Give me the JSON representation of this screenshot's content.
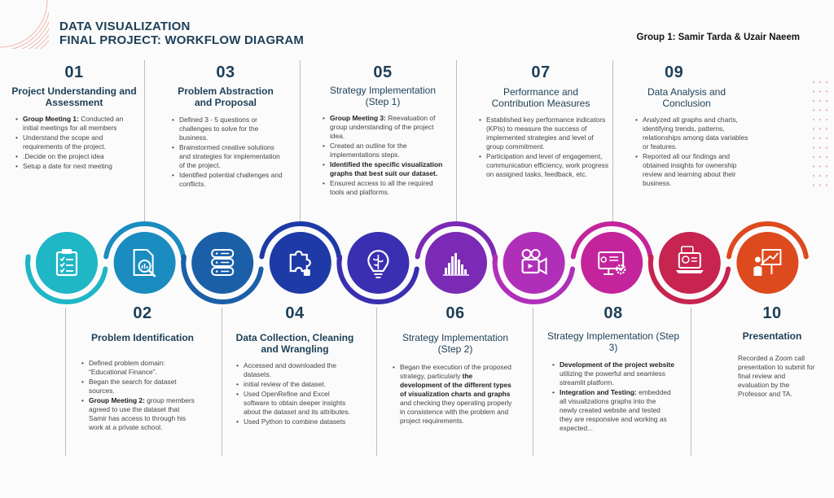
{
  "header": {
    "title_line1": "DATA VISUALIZATION",
    "title_line2": "FINAL PROJECT: WORKFLOW DIAGRAM",
    "group": "Group 1: Samir Tarda & Uzair Naeem"
  },
  "colors": {
    "title": "#1d3f57",
    "icon_colors": [
      "#1fb6c6",
      "#1a8cc0",
      "#1b5fa8",
      "#1e3aa7",
      "#3a2fb0",
      "#7a2ab4",
      "#b02fb8",
      "#c4249b",
      "#c72450",
      "#dd4a1e"
    ]
  },
  "steps": [
    {
      "num": "01",
      "heading": "Project Understanding and Assessment",
      "icon": "clipboard-checklist-icon",
      "items": [
        {
          "bold": "Group Meeting 1:",
          "text": " Conducted an initial meetings for all members"
        },
        {
          "bold": "",
          "text": " Understand the scope and requirements of the project."
        },
        {
          "bold": "",
          "text": ".Decide on the project idea"
        },
        {
          "bold": "",
          "text": "Setup a date for next meeting"
        }
      ]
    },
    {
      "num": "02",
      "heading": "Problem Identification",
      "icon": "document-magnifier-icon",
      "items": [
        {
          "bold": "",
          "text": "Defined problem domain: “Educational Finance”."
        },
        {
          "bold": "",
          "text": "Began the search for dataset sources."
        },
        {
          "bold": "Group Meeting 2:",
          "text": " group members agreed to use the dataset that Samir has access to through his work at a private school."
        }
      ]
    },
    {
      "num": "03",
      "heading": "Problem Abstraction and Proposal",
      "icon": "database-icon",
      "items": [
        {
          "bold": "",
          "text": "Defined 3 - 5 questions or challenges to solve for the business."
        },
        {
          "bold": "",
          "text": "Brainstormed creative solutions and strategies for implementation of the project."
        },
        {
          "bold": "",
          "text": "Identified potential challenges and conflicts."
        }
      ]
    },
    {
      "num": "04",
      "heading": "Data Collection, Cleaning and Wrangling",
      "icon": "puzzle-piece-icon",
      "items": [
        {
          "bold": "",
          "text": "Accessed and downloaded the datasets."
        },
        {
          "bold": "",
          "text": "initial review of the dataset."
        },
        {
          "bold": "",
          "text": "Used OpenRefine and Excel software to obtain deeper insights about the dataset and its attributes."
        },
        {
          "bold": "",
          "text": "Used Python to combine datasets"
        }
      ]
    },
    {
      "num": "05",
      "heading": "Strategy Implementation (Step 1)",
      "icon": "brain-lightbulb-icon",
      "items": [
        {
          "bold": "Group Meeting 3:",
          "text": " Reevaluation of group understanding of the project idea."
        },
        {
          "bold": "",
          "text": "Created an outline  for the implementations steps."
        },
        {
          "bold": "Identified the specific visualization graphs that best suit our dataset.",
          "text": ""
        },
        {
          "bold": "",
          "text": "Ensured access to all the required tools and platforms."
        }
      ]
    },
    {
      "num": "06",
      "heading": "Strategy Implementation (Step 2)",
      "icon": "bar-histogram-icon",
      "items": [
        {
          "bold": "",
          "text": "Began the execution of the proposed strategy, particularly ",
          "bold2": "the development of the different types of visualization charts and graphs",
          "text2": " and checking they operating properly in consistence with the problem and project requirements."
        }
      ]
    },
    {
      "num": "07",
      "heading": "Performance and Contribution Measures",
      "icon": "video-camera-icon",
      "items": [
        {
          "bold": "",
          "text": "Established key performance indicators (KPIs) to measure the success of implemented strategies and level of group commitment."
        },
        {
          "bold": "",
          "text": "Participation and level of engagement, communication efficiency, work progress on assigned tasks, feedback, etc."
        }
      ]
    },
    {
      "num": "08",
      "heading": "Strategy Implementation (Step 3)",
      "icon": "monitor-gear-icon",
      "items": [
        {
          "bold": "Development of the project website",
          "text": " utilizing the powerful and seamless streamlit platform."
        },
        {
          "bold": "Integration and Testing:",
          "text": " embedded all visualizations graphs into the newly created website and tested they are responsive and working as expected..."
        }
      ]
    },
    {
      "num": "09",
      "heading": "Data Analysis and Conclusion",
      "icon": "laptop-analysis-icon",
      "items": [
        {
          "bold": "",
          "text": "Analyzed all graphs and charts, identifying trends, patterns, relationships among data variables or features."
        },
        {
          "bold": "",
          "text": "Reported all our findings and obtained insights for ownership review and learning about their business."
        }
      ]
    },
    {
      "num": "10",
      "heading": "Presentation",
      "icon": "presenter-board-icon",
      "items": [
        {
          "bold": "",
          "text": "Recorded a Zoom call presentation to submit for final review and evaluation by the Professor and TA."
        }
      ]
    }
  ]
}
